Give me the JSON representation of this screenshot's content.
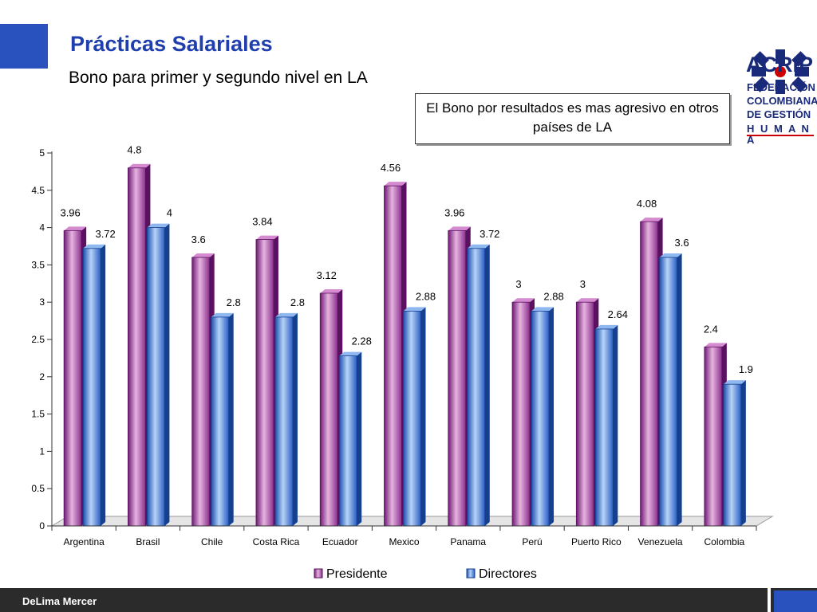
{
  "slide": {
    "title": "Prácticas Salariales",
    "subtitle": "Bono para primer y segundo nivel en LA",
    "callout": "El Bono por resultados es mas agresivo en otros países de LA",
    "footer_label": "DeLima Mercer"
  },
  "logo": {
    "name": "ACRIP",
    "lines": [
      "FEDERACIÓN",
      "COLOMBIANA",
      "DE GESTIÓN",
      "H U M A N A"
    ]
  },
  "colors": {
    "title": "#1f3fae",
    "accent_blue": "#2a52be",
    "logo_navy": "#1a2a7a",
    "logo_red": "#cc0000",
    "presidente": "#b04ea6",
    "directores": "#3f79d9"
  },
  "chart_data": {
    "type": "bar",
    "categories": [
      "Argentina",
      "Brasil",
      "Chile",
      "Costa Rica",
      "Ecuador",
      "Mexico",
      "Panama",
      "Perú",
      "Puerto Rico",
      "Venezuela",
      "Colombia"
    ],
    "series": [
      {
        "name": "Presidente",
        "values": [
          3.96,
          4.8,
          3.6,
          3.84,
          3.12,
          4.56,
          3.96,
          3,
          3,
          4.08,
          2.4
        ]
      },
      {
        "name": "Directores",
        "values": [
          3.72,
          4,
          2.8,
          2.8,
          2.28,
          2.88,
          3.72,
          2.88,
          2.64,
          3.6,
          1.9
        ]
      }
    ],
    "ylim": [
      0,
      5
    ],
    "yticks": [
      "0",
      "0.5",
      "1",
      "1.5",
      "2",
      "2.5",
      "3",
      "3.5",
      "4",
      "4.5",
      "5"
    ],
    "legend": "bottom",
    "grid": false
  }
}
